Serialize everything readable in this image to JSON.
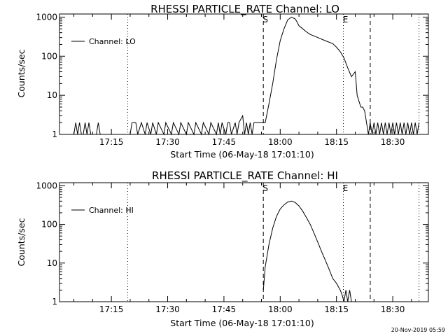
{
  "timestamp": "20-Nov-2019 05:59",
  "chart_data": [
    {
      "type": "line",
      "title": "RHESSI PARTICLE_RATE Channel: LO",
      "xlabel": "Start Time (06-May-18 17:01:10)",
      "ylabel": "Counts/sec",
      "y_scale": "log",
      "ylim": [
        1,
        1200
      ],
      "xlim": [
        "17:01:10",
        "18:39:30"
      ],
      "x_tick_labels": [
        "17:15",
        "17:30",
        "17:45",
        "18:00",
        "18:15",
        "18:30"
      ],
      "y_tick_labels": [
        "1",
        "10",
        "100",
        "1000"
      ],
      "legend": {
        "position": "top-left",
        "entries": [
          "Channel: LO"
        ]
      },
      "markers": [
        {
          "label": "",
          "style": "dotted",
          "time": "17:19:20"
        },
        {
          "label": "S",
          "style": "dashed",
          "time": "17:55:30"
        },
        {
          "label": "E",
          "style": "dotted",
          "time": "18:16:50"
        },
        {
          "label": "",
          "style": "dashed",
          "time": "18:24:00"
        },
        {
          "label": "",
          "style": "dotted",
          "time": "18:37:00"
        }
      ],
      "series": [
        {
          "name": "Channel: LO",
          "x": [
            "17:05:00",
            "17:05:30",
            "17:06:00",
            "17:06:30",
            "17:07:00",
            "17:07:30",
            "17:08:00",
            "17:08:30",
            "17:09:00",
            "17:09:30",
            "17:10:00",
            "17:10:30",
            "17:11:00",
            "17:11:30",
            "17:12:00",
            "17:20:00",
            "17:20:30",
            "17:21:00",
            "17:21:30",
            "17:22:00",
            "17:23:00",
            "17:24:00",
            "17:24:30",
            "17:25:30",
            "17:26:00",
            "17:27:00",
            "17:27:30",
            "17:29:00",
            "17:29:30",
            "17:31:00",
            "17:31:30",
            "17:33:00",
            "17:33:30",
            "17:35:00",
            "17:35:30",
            "17:37:00",
            "17:37:30",
            "17:39:00",
            "17:39:30",
            "17:41:00",
            "17:41:30",
            "17:43:00",
            "17:43:30",
            "17:44:00",
            "17:44:30",
            "17:45:30",
            "17:46:00",
            "17:46:30",
            "17:47:00",
            "17:48:00",
            "17:48:30",
            "17:49:00",
            "17:50:00",
            "17:50:30",
            "17:51:00",
            "17:51:30",
            "17:52:00",
            "17:52:30",
            "17:53:00",
            "17:53:30",
            "17:54:00",
            "17:54:30",
            "17:55:00",
            "17:56:00",
            "17:57:00",
            "17:58:00",
            "17:59:00",
            "18:00:00",
            "18:01:00",
            "18:02:00",
            "18:03:00",
            "18:04:00",
            "18:04:30",
            "18:05:00",
            "18:06:00",
            "18:07:00",
            "18:08:00",
            "18:10:00",
            "18:12:00",
            "18:14:00",
            "18:15:00",
            "18:16:00",
            "18:17:00",
            "18:18:00",
            "18:19:00",
            "18:20:00",
            "18:20:30",
            "18:21:00",
            "18:21:30",
            "18:22:00",
            "18:22:30",
            "18:23:00",
            "18:23:30",
            "18:24:00",
            "18:24:30",
            "18:25:00",
            "18:25:30",
            "18:26:00",
            "18:26:30",
            "18:27:00",
            "18:27:30",
            "18:28:00",
            "18:28:30",
            "18:29:00",
            "18:29:30",
            "18:30:00",
            "18:30:30",
            "18:31:00",
            "18:31:30",
            "18:32:00",
            "18:32:30",
            "18:33:00",
            "18:33:30",
            "18:34:00",
            "18:34:30",
            "18:35:00",
            "18:35:30",
            "18:36:00",
            "18:36:30",
            "18:37:00"
          ],
          "values": [
            1,
            2,
            1,
            2,
            1,
            1,
            2,
            1,
            2,
            1,
            1,
            1,
            1,
            2,
            1,
            1,
            2,
            2,
            2,
            1,
            2,
            1,
            2,
            1,
            2,
            1,
            2,
            1,
            2,
            1,
            2,
            1,
            2,
            1,
            2,
            1,
            2,
            1,
            2,
            1,
            2,
            1,
            2,
            1,
            2,
            1,
            2,
            2,
            1,
            2,
            1,
            2,
            3,
            1,
            2,
            1,
            2,
            1,
            2,
            2,
            2,
            2,
            2,
            2,
            6,
            20,
            80,
            250,
            500,
            850,
            1000,
            900,
            750,
            600,
            500,
            420,
            360,
            300,
            250,
            210,
            170,
            130,
            90,
            50,
            30,
            40,
            10,
            7,
            5,
            5,
            4,
            2,
            1,
            2,
            1,
            2,
            1,
            2,
            1,
            2,
            1,
            2,
            1,
            2,
            1,
            2,
            1,
            2,
            1,
            2,
            1,
            2,
            1,
            2,
            1,
            2,
            1,
            2,
            1,
            2
          ]
        }
      ]
    },
    {
      "type": "line",
      "title": "RHESSI PARTICLE_RATE Channel: HI",
      "xlabel": "Start Time (06-May-18 17:01:10)",
      "ylabel": "Counts/sec",
      "y_scale": "log",
      "ylim": [
        1,
        1200
      ],
      "xlim": [
        "17:01:10",
        "18:39:30"
      ],
      "x_tick_labels": [
        "17:15",
        "17:30",
        "17:45",
        "18:00",
        "18:15",
        "18:30"
      ],
      "y_tick_labels": [
        "1",
        "10",
        "100",
        "1000"
      ],
      "legend": {
        "position": "top-left",
        "entries": [
          "Channel: HI"
        ]
      },
      "markers": [
        {
          "label": "",
          "style": "dotted",
          "time": "17:19:20"
        },
        {
          "label": "S",
          "style": "dashed",
          "time": "17:55:30"
        },
        {
          "label": "E",
          "style": "dotted",
          "time": "18:16:50"
        },
        {
          "label": "",
          "style": "dashed",
          "time": "18:24:00"
        },
        {
          "label": "",
          "style": "dotted",
          "time": "18:37:00"
        }
      ],
      "series": [
        {
          "name": "Channel: HI",
          "x": [
            "17:55:30",
            "17:56:00",
            "17:57:00",
            "17:58:00",
            "17:59:00",
            "18:00:00",
            "18:01:00",
            "18:02:00",
            "18:03:00",
            "18:04:00",
            "18:05:00",
            "18:06:00",
            "18:07:00",
            "18:08:00",
            "18:09:00",
            "18:10:00",
            "18:11:00",
            "18:12:00",
            "18:13:00",
            "18:14:00",
            "18:15:00",
            "18:16:00",
            "18:16:30",
            "18:17:00",
            "18:17:30",
            "18:18:00",
            "18:18:30",
            "18:19:00",
            "18:19:30"
          ],
          "values": [
            2,
            8,
            30,
            80,
            160,
            250,
            320,
            380,
            400,
            370,
            300,
            220,
            150,
            100,
            60,
            35,
            20,
            12,
            7,
            4,
            3,
            2,
            1.5,
            1,
            2,
            1,
            2,
            1,
            1
          ]
        }
      ]
    }
  ]
}
